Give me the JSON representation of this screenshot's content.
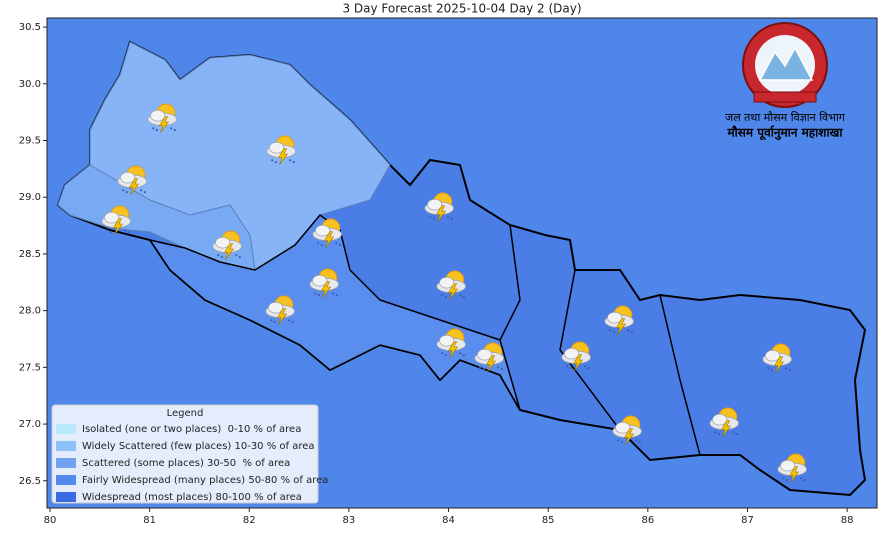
{
  "chart_data": {
    "type": "map",
    "title": "3 Day Forecast 2025-10-04 Day 2 (Day)",
    "xlim": [
      79.97,
      88.3
    ],
    "ylim": [
      26.26,
      30.58
    ],
    "xticks": [
      80,
      81,
      82,
      83,
      84,
      85,
      86,
      87,
      88
    ],
    "yticks": [
      {
        "value": 26.5,
        "label": "26.5"
      },
      {
        "value": 27,
        "label": "27.0"
      },
      {
        "value": 27.5,
        "label": "27.5"
      },
      {
        "value": 28,
        "label": "28.0"
      },
      {
        "value": 28.5,
        "label": "28.5"
      },
      {
        "value": 29,
        "label": "29.0"
      },
      {
        "value": 29.5,
        "label": "29.5"
      },
      {
        "value": 30,
        "label": "30.0"
      },
      {
        "value": 30.5,
        "label": "30.5"
      }
    ],
    "legend": {
      "title": "Legend",
      "items": [
        {
          "label": "Isolated (one or two places)  0-10 % of area",
          "color": "#b8e8fb"
        },
        {
          "label": "Widely Scattered (few places) 10-30 % of area",
          "color": "#8dc1f8"
        },
        {
          "label": "Scattered (some places) 30-50  % of area",
          "color": "#6fa2f1"
        },
        {
          "label": "Fairly Widespread (many places) 50-80 % of area",
          "color": "#5289ec"
        },
        {
          "label": "Widespread (most places) 80-100 % of area",
          "color": "#3b6be4"
        }
      ]
    },
    "logo_text": [
      "जल तथा मौसम विज्ञान विभाग",
      "मौसम पूर्वानुमान महाशाखा"
    ]
  }
}
